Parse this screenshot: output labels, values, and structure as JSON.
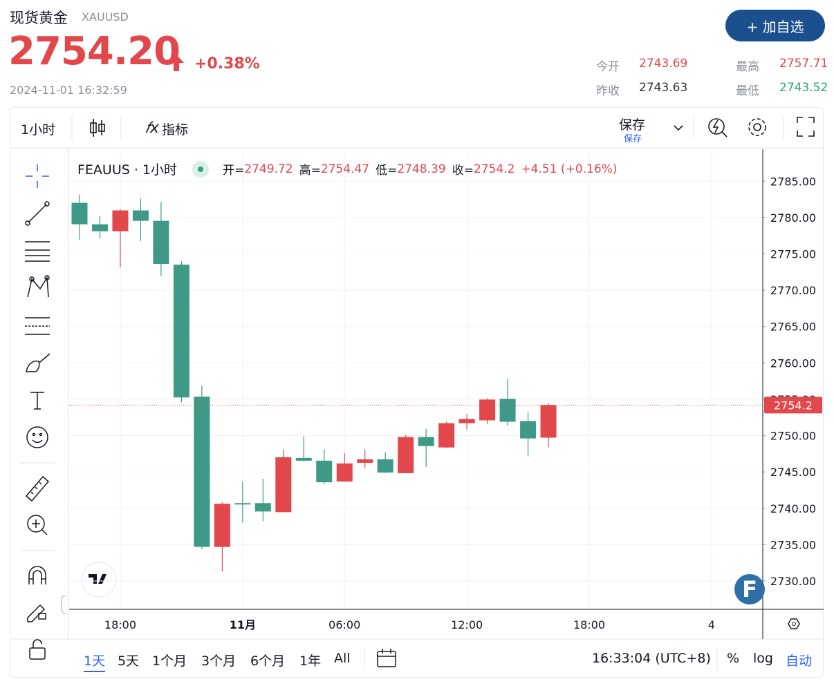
{
  "header": {
    "title": "现货黄金",
    "symbol": "XAUUSD",
    "price": "2754.20",
    "change": "+0.38%",
    "timestamp": "2024-11-01 16:32:59",
    "button": "+ 加自选",
    "stats": [
      {
        "label": "今开",
        "value": "2743.69"
      },
      {
        "label": "最高",
        "value": "2757.71"
      },
      {
        "label": "昨收",
        "value": "2743.63"
      },
      {
        "label": "最低",
        "value": "2743.52"
      }
    ]
  },
  "toolbar": {
    "interval": "1小时",
    "indicators": "指标",
    "save": "保存",
    "save_sub": "保存"
  },
  "chart_data": {
    "type": "candlestick",
    "title": "FEAUUS · 1小时",
    "ohlc_labels": [
      "开=",
      "高=",
      "低=",
      "收="
    ],
    "change_label": "+4.51 (+0.16%)",
    "up_color": "#e2474c",
    "down_color": "#3e9a86",
    "grid": true,
    "categories": [
      null,
      null,
      "18:00",
      null,
      null,
      null,
      null,
      null,
      "11月",
      null,
      null,
      null,
      null,
      "06:00",
      null,
      null,
      null,
      null,
      null,
      "12:00",
      null,
      null,
      null,
      null,
      null,
      "18:00",
      null,
      null,
      null,
      null,
      null,
      "4"
    ],
    "open": [
      2782.03,
      2779.07,
      2778.11,
      2780.98,
      2779.55,
      2773.52,
      2755.35,
      2734.69,
      2740.71,
      2740.71,
      2739.47,
      2746.93,
      2746.55,
      2743.68,
      2746.26,
      2746.74,
      2744.83,
      2749.8,
      2748.37,
      2751.71,
      2752.1,
      2755.06,
      2752.0,
      2749.72,
      null,
      null,
      null,
      null,
      null,
      null,
      null,
      null
    ],
    "high": [
      2783.18,
      2780.22,
      2781.17,
      2782.61,
      2782.13,
      2774.0,
      2756.88,
      2740.81,
      2743.68,
      2744.06,
      2748.08,
      2749.9,
      2748.08,
      2747.6,
      2748.08,
      2747.7,
      2750.09,
      2750.95,
      2751.9,
      2752.96,
      2755.16,
      2757.83,
      2753.24,
      2754.47,
      null,
      null,
      null,
      null,
      null,
      null,
      null,
      null
    ],
    "low": [
      2776.97,
      2777.16,
      2773.14,
      2776.77,
      2771.99,
      2754.58,
      2734.4,
      2731.34,
      2738.03,
      2738.22,
      2739.47,
      2746.45,
      2743.3,
      2743.68,
      2745.5,
      2744.83,
      2744.83,
      2745.69,
      2748.27,
      2750.85,
      2751.62,
      2751.33,
      2747.12,
      2748.39,
      null,
      null,
      null,
      null,
      null,
      null,
      null,
      null
    ],
    "close": [
      2779.07,
      2778.11,
      2780.98,
      2779.55,
      2773.62,
      2755.25,
      2734.69,
      2740.62,
      2740.52,
      2739.56,
      2747.03,
      2746.55,
      2743.58,
      2746.17,
      2746.74,
      2744.92,
      2749.8,
      2748.56,
      2751.71,
      2752.29,
      2754.96,
      2751.9,
      2749.61,
      2754.2,
      null,
      null,
      null,
      null,
      null,
      null,
      null,
      null
    ],
    "ylim": [
      2726.1,
      2789.4
    ],
    "yticks": [
      {
        "value": 2730,
        "label": "2730.00"
      },
      {
        "value": 2735,
        "label": "2735.00"
      },
      {
        "value": 2740,
        "label": "2740.00"
      },
      {
        "value": 2745,
        "label": "2745.00"
      },
      {
        "value": 2750,
        "label": "2750.00"
      },
      {
        "value": 2755,
        "label": "2755.00"
      },
      {
        "value": 2760,
        "label": "2760.00"
      },
      {
        "value": 2765,
        "label": "2765.00"
      },
      {
        "value": 2770,
        "label": "2770.00"
      },
      {
        "value": 2775,
        "label": "2775.00"
      },
      {
        "value": 2780,
        "label": "2780.00"
      },
      {
        "value": 2785,
        "label": "2785.00"
      }
    ]
  },
  "watermark": "F",
  "footer": {
    "ranges": [
      "1天",
      "5天",
      "1个月",
      "3个月",
      "6个月",
      "1年",
      "All"
    ],
    "time": "16:33:04 (UTC+8)",
    "percent": "%",
    "log": "log",
    "auto": "自动"
  }
}
